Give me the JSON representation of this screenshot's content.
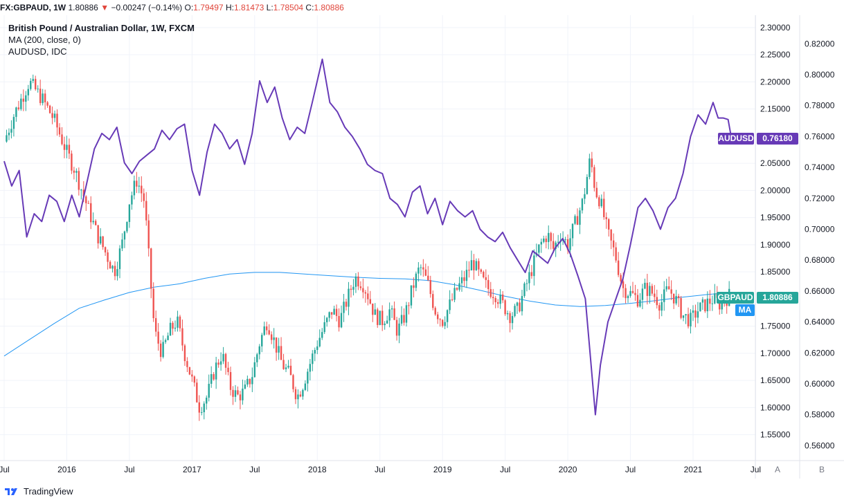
{
  "header": {
    "symbol": "FX:GBPAUD,",
    "interval": "1W",
    "last": "1.80886",
    "change": "−0.00247 (−0.14%)",
    "o_label": "O:",
    "o": "1.79497",
    "h_label": "H:",
    "h": "1.81473",
    "l_label": "L:",
    "l": "1.78504",
    "c_label": "C:",
    "c": "1.80886"
  },
  "legend": {
    "main": "British Pound / Australian Dollar, 1W, FXCM",
    "ma": "MA (200, close, 0)",
    "compare": "AUDUSD, IDC"
  },
  "tags": {
    "audusd_name": "AUDUSD",
    "audusd_value": "0.76180",
    "gbpaud_name": "GBPAUD",
    "gbpaud_value": "1.80886",
    "ma_name": "MA"
  },
  "scale_buttons": {
    "a": "A",
    "b": "B"
  },
  "footer": {
    "brand": "TradingView"
  },
  "colors": {
    "up": "#26a69a",
    "down": "#ef5350",
    "audusd": "#673ab7",
    "ma": "#2196f3",
    "gbpaud_tag": "#26a69a"
  },
  "chart_data": {
    "type": "candlestick",
    "title": "British Pound / Australian Dollar, 1W, FXCM",
    "x_ticks": [
      "Jul",
      "2016",
      "Jul",
      "2017",
      "Jul",
      "2018",
      "Jul",
      "2019",
      "Jul",
      "2020",
      "Jul",
      "2021",
      "Jul"
    ],
    "x_tick_times": [
      2015.5,
      2016.0,
      2016.5,
      2017.0,
      2017.5,
      2018.0,
      2018.5,
      2019.0,
      2019.5,
      2020.0,
      2020.5,
      2021.0,
      2021.5
    ],
    "x_range": [
      2015.5,
      2021.47
    ],
    "y_left_label": "GBPAUD",
    "y_left_ticks": [
      "2.30000",
      "2.25000",
      "2.20000",
      "2.15000",
      "2.10000",
      "2.05000",
      "2.00000",
      "1.95000",
      "1.90000",
      "1.85000",
      "1.80000",
      "1.75000",
      "1.70000",
      "1.65000",
      "1.60000",
      "1.55000"
    ],
    "y_left_range": [
      1.51,
      2.31
    ],
    "y_right_ticks": [
      "0.82000",
      "0.80000",
      "0.78000",
      "0.76000",
      "0.74000",
      "0.72000",
      "0.70000",
      "0.68000",
      "0.66000",
      "0.64000",
      "0.62000",
      "0.60000",
      "0.58000",
      "0.56000"
    ],
    "y_right_range": [
      0.553,
      0.834
    ],
    "series": [
      {
        "name": "GBPAUD",
        "style": "candles",
        "close_points": [
          [
            2015.5,
            2.09
          ],
          [
            2015.58,
            2.14
          ],
          [
            2015.7,
            2.2
          ],
          [
            2015.8,
            2.17
          ],
          [
            2015.9,
            2.13
          ],
          [
            2016.0,
            2.07
          ],
          [
            2016.06,
            2.04
          ],
          [
            2016.12,
            2.0
          ],
          [
            2016.18,
            1.96
          ],
          [
            2016.24,
            1.92
          ],
          [
            2016.32,
            1.88
          ],
          [
            2016.38,
            1.85
          ],
          [
            2016.44,
            1.9
          ],
          [
            2016.5,
            1.98
          ],
          [
            2016.56,
            2.02
          ],
          [
            2016.62,
            1.98
          ],
          [
            2016.66,
            1.86
          ],
          [
            2016.7,
            1.74
          ],
          [
            2016.76,
            1.7
          ],
          [
            2016.82,
            1.74
          ],
          [
            2016.88,
            1.76
          ],
          [
            2016.94,
            1.7
          ],
          [
            2017.0,
            1.65
          ],
          [
            2017.06,
            1.6
          ],
          [
            2017.12,
            1.62
          ],
          [
            2017.18,
            1.67
          ],
          [
            2017.24,
            1.7
          ],
          [
            2017.3,
            1.64
          ],
          [
            2017.36,
            1.62
          ],
          [
            2017.42,
            1.63
          ],
          [
            2017.48,
            1.66
          ],
          [
            2017.54,
            1.72
          ],
          [
            2017.6,
            1.76
          ],
          [
            2017.66,
            1.72
          ],
          [
            2017.72,
            1.68
          ],
          [
            2017.78,
            1.66
          ],
          [
            2017.84,
            1.62
          ],
          [
            2017.88,
            1.64
          ],
          [
            2017.94,
            1.68
          ],
          [
            2018.0,
            1.72
          ],
          [
            2018.06,
            1.75
          ],
          [
            2018.12,
            1.78
          ],
          [
            2018.18,
            1.76
          ],
          [
            2018.24,
            1.8
          ],
          [
            2018.3,
            1.84
          ],
          [
            2018.36,
            1.83
          ],
          [
            2018.4,
            1.81
          ],
          [
            2018.46,
            1.77
          ],
          [
            2018.52,
            1.76
          ],
          [
            2018.58,
            1.78
          ],
          [
            2018.64,
            1.74
          ],
          [
            2018.7,
            1.77
          ],
          [
            2018.76,
            1.82
          ],
          [
            2018.82,
            1.86
          ],
          [
            2018.88,
            1.83
          ],
          [
            2018.94,
            1.78
          ],
          [
            2019.0,
            1.76
          ],
          [
            2019.06,
            1.79
          ],
          [
            2019.12,
            1.82
          ],
          [
            2019.18,
            1.84
          ],
          [
            2019.24,
            1.87
          ],
          [
            2019.3,
            1.84
          ],
          [
            2019.36,
            1.82
          ],
          [
            2019.42,
            1.81
          ],
          [
            2019.48,
            1.79
          ],
          [
            2019.54,
            1.77
          ],
          [
            2019.6,
            1.78
          ],
          [
            2019.66,
            1.82
          ],
          [
            2019.72,
            1.86
          ],
          [
            2019.78,
            1.9
          ],
          [
            2019.84,
            1.92
          ],
          [
            2019.88,
            1.89
          ],
          [
            2019.94,
            1.92
          ],
          [
            2020.0,
            1.9
          ],
          [
            2020.06,
            1.94
          ],
          [
            2020.12,
            1.98
          ],
          [
            2020.18,
            2.06
          ],
          [
            2020.22,
            2.0
          ],
          [
            2020.26,
            1.98
          ],
          [
            2020.32,
            1.92
          ],
          [
            2020.38,
            1.88
          ],
          [
            2020.44,
            1.82
          ],
          [
            2020.5,
            1.81
          ],
          [
            2020.56,
            1.8
          ],
          [
            2020.62,
            1.82
          ],
          [
            2020.68,
            1.81
          ],
          [
            2020.74,
            1.79
          ],
          [
            2020.8,
            1.82
          ],
          [
            2020.86,
            1.8
          ],
          [
            2020.92,
            1.77
          ],
          [
            2020.98,
            1.76
          ],
          [
            2021.04,
            1.78
          ],
          [
            2021.1,
            1.79
          ],
          [
            2021.16,
            1.8
          ],
          [
            2021.22,
            1.79
          ],
          [
            2021.26,
            1.8
          ],
          [
            2021.3,
            1.809
          ]
        ]
      },
      {
        "name": "MA (200, close, 0)",
        "style": "line",
        "points": [
          [
            2015.5,
            1.695
          ],
          [
            2015.7,
            1.725
          ],
          [
            2015.9,
            1.755
          ],
          [
            2016.1,
            1.783
          ],
          [
            2016.3,
            1.798
          ],
          [
            2016.5,
            1.812
          ],
          [
            2016.7,
            1.822
          ],
          [
            2016.9,
            1.828
          ],
          [
            2017.1,
            1.838
          ],
          [
            2017.3,
            1.846
          ],
          [
            2017.5,
            1.849
          ],
          [
            2017.7,
            1.849
          ],
          [
            2017.9,
            1.846
          ],
          [
            2018.1,
            1.843
          ],
          [
            2018.3,
            1.84
          ],
          [
            2018.5,
            1.838
          ],
          [
            2018.7,
            1.837
          ],
          [
            2018.9,
            1.834
          ],
          [
            2019.1,
            1.826
          ],
          [
            2019.3,
            1.816
          ],
          [
            2019.5,
            1.805
          ],
          [
            2019.7,
            1.796
          ],
          [
            2019.9,
            1.789
          ],
          [
            2020.1,
            1.786
          ],
          [
            2020.3,
            1.788
          ],
          [
            2020.5,
            1.792
          ],
          [
            2020.7,
            1.797
          ],
          [
            2020.9,
            1.803
          ],
          [
            2021.1,
            1.808
          ],
          [
            2021.3,
            1.812
          ]
        ]
      },
      {
        "name": "AUDUSD",
        "style": "line",
        "axis": "right",
        "points": [
          [
            2015.5,
            0.744
          ],
          [
            2015.56,
            0.728
          ],
          [
            2015.62,
            0.738
          ],
          [
            2015.68,
            0.695
          ],
          [
            2015.74,
            0.71
          ],
          [
            2015.8,
            0.705
          ],
          [
            2015.86,
            0.722
          ],
          [
            2015.92,
            0.718
          ],
          [
            2015.98,
            0.705
          ],
          [
            2016.04,
            0.722
          ],
          [
            2016.1,
            0.708
          ],
          [
            2016.16,
            0.73
          ],
          [
            2016.22,
            0.752
          ],
          [
            2016.28,
            0.762
          ],
          [
            2016.34,
            0.758
          ],
          [
            2016.4,
            0.766
          ],
          [
            2016.46,
            0.743
          ],
          [
            2016.52,
            0.736
          ],
          [
            2016.58,
            0.744
          ],
          [
            2016.64,
            0.748
          ],
          [
            2016.7,
            0.752
          ],
          [
            2016.76,
            0.764
          ],
          [
            2016.82,
            0.758
          ],
          [
            2016.88,
            0.765
          ],
          [
            2016.94,
            0.768
          ],
          [
            2017.0,
            0.738
          ],
          [
            2017.06,
            0.722
          ],
          [
            2017.12,
            0.75
          ],
          [
            2017.18,
            0.768
          ],
          [
            2017.24,
            0.762
          ],
          [
            2017.3,
            0.752
          ],
          [
            2017.36,
            0.758
          ],
          [
            2017.42,
            0.742
          ],
          [
            2017.48,
            0.762
          ],
          [
            2017.54,
            0.796
          ],
          [
            2017.6,
            0.782
          ],
          [
            2017.66,
            0.792
          ],
          [
            2017.72,
            0.772
          ],
          [
            2017.78,
            0.758
          ],
          [
            2017.84,
            0.766
          ],
          [
            2017.9,
            0.762
          ],
          [
            2017.96,
            0.782
          ],
          [
            2018.04,
            0.81
          ],
          [
            2018.1,
            0.782
          ],
          [
            2018.16,
            0.776
          ],
          [
            2018.22,
            0.766
          ],
          [
            2018.28,
            0.76
          ],
          [
            2018.34,
            0.752
          ],
          [
            2018.4,
            0.742
          ],
          [
            2018.46,
            0.738
          ],
          [
            2018.52,
            0.736
          ],
          [
            2018.58,
            0.72
          ],
          [
            2018.64,
            0.716
          ],
          [
            2018.7,
            0.708
          ],
          [
            2018.76,
            0.724
          ],
          [
            2018.82,
            0.728
          ],
          [
            2018.88,
            0.71
          ],
          [
            2018.94,
            0.72
          ],
          [
            2019.0,
            0.703
          ],
          [
            2019.06,
            0.718
          ],
          [
            2019.12,
            0.712
          ],
          [
            2019.18,
            0.708
          ],
          [
            2019.24,
            0.712
          ],
          [
            2019.3,
            0.7
          ],
          [
            2019.36,
            0.695
          ],
          [
            2019.42,
            0.692
          ],
          [
            2019.48,
            0.698
          ],
          [
            2019.54,
            0.688
          ],
          [
            2019.6,
            0.68
          ],
          [
            2019.66,
            0.672
          ],
          [
            2019.72,
            0.686
          ],
          [
            2019.78,
            0.682
          ],
          [
            2019.84,
            0.678
          ],
          [
            2019.9,
            0.688
          ],
          [
            2019.96,
            0.694
          ],
          [
            2020.02,
            0.684
          ],
          [
            2020.08,
            0.67
          ],
          [
            2020.14,
            0.655
          ],
          [
            2020.18,
            0.618
          ],
          [
            2020.22,
            0.58
          ],
          [
            2020.26,
            0.612
          ],
          [
            2020.32,
            0.64
          ],
          [
            2020.38,
            0.654
          ],
          [
            2020.44,
            0.668
          ],
          [
            2020.5,
            0.69
          ],
          [
            2020.56,
            0.714
          ],
          [
            2020.62,
            0.72
          ],
          [
            2020.68,
            0.712
          ],
          [
            2020.74,
            0.7
          ],
          [
            2020.8,
            0.714
          ],
          [
            2020.86,
            0.72
          ],
          [
            2020.92,
            0.736
          ],
          [
            2020.98,
            0.76
          ],
          [
            2021.04,
            0.774
          ],
          [
            2021.1,
            0.768
          ],
          [
            2021.16,
            0.782
          ],
          [
            2021.2,
            0.772
          ],
          [
            2021.24,
            0.772
          ],
          [
            2021.28,
            0.771
          ],
          [
            2021.3,
            0.762
          ]
        ]
      }
    ],
    "last_values": {
      "GBPAUD": 1.80886,
      "AUDUSD": 0.7618
    }
  }
}
